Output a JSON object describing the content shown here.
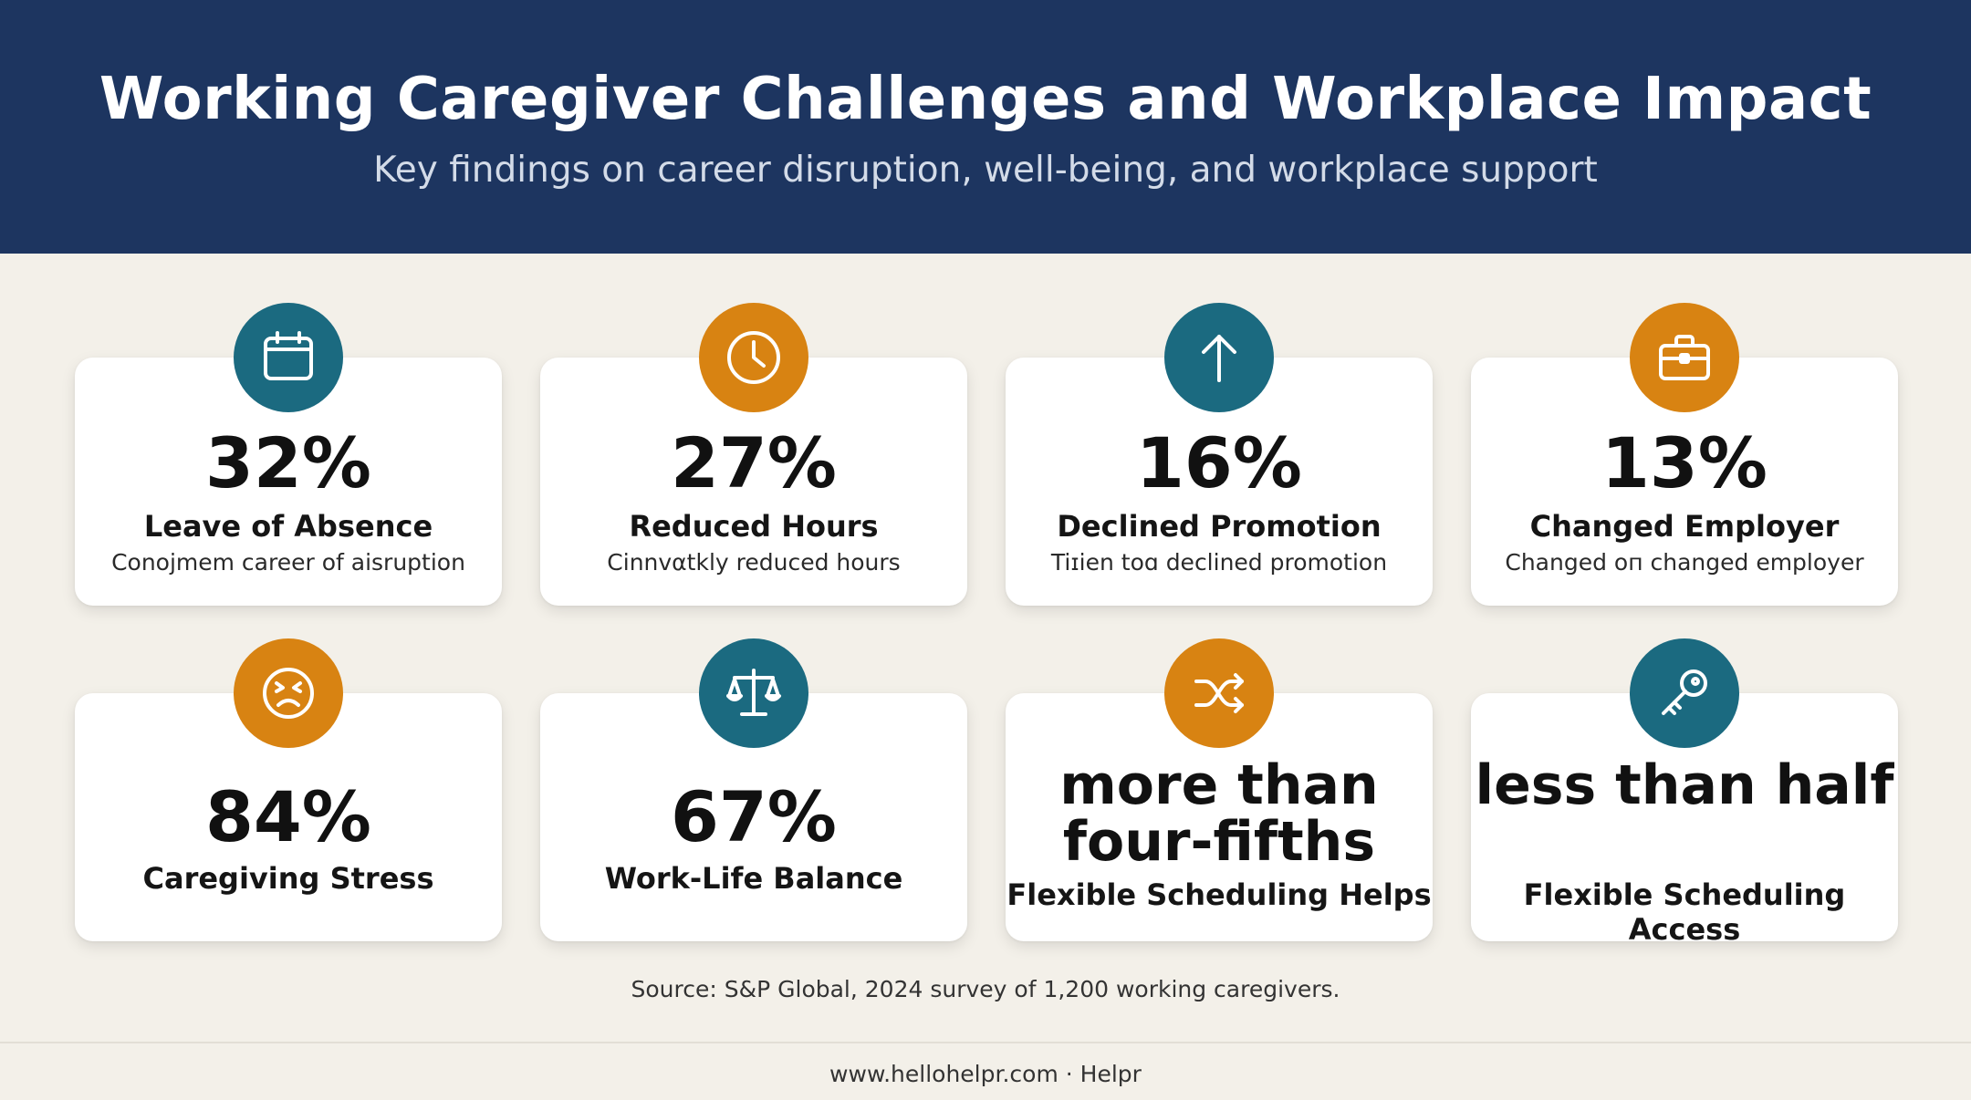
{
  "header": {
    "title": "Working Caregiver Challenges and Workplace Impact",
    "subtitle": "Key findings on career disruption, well-being, and workplace support"
  },
  "cards": [
    {
      "value": "32%",
      "label": "Leave of Absence",
      "desc": "Conojmem career of aisruption",
      "icon": "calendar-icon",
      "color": "#1b6a80"
    },
    {
      "value": "27%",
      "label": "Reduced Hours",
      "desc": "Cinnvαtkly reduced hours",
      "icon": "clock-icon",
      "color": "#d88312"
    },
    {
      "value": "16%",
      "label": "Declined Promotion",
      "desc": "Tiɪien toɑ declined promotion",
      "icon": "arrow-up-icon",
      "color": "#1b6a80"
    },
    {
      "value": "13%",
      "label": "Changed Employer",
      "desc": "Changed oп changed employer",
      "icon": "briefcase-icon",
      "color": "#d88312"
    },
    {
      "value": "84%",
      "label": "Caregiving Stress",
      "icon": "stressed-face-icon",
      "color": "#d88312"
    },
    {
      "value": "67%",
      "label": "Work-Life Balance",
      "icon": "balance-scale-icon",
      "color": "#1b6a80"
    },
    {
      "value": "more than four-fifths",
      "label": "Flexible Scheduling Helps",
      "icon": "shuffle-icon",
      "color": "#d88312"
    },
    {
      "value": "less than half",
      "label": "Flexible Scheduling Access",
      "icon": "key-icon",
      "color": "#1b6a80"
    }
  ],
  "source": "Source: S&P Global, 2024 survey of 1,200 working caregivers.",
  "footer": "www.hellohelpr.com · Helpr"
}
